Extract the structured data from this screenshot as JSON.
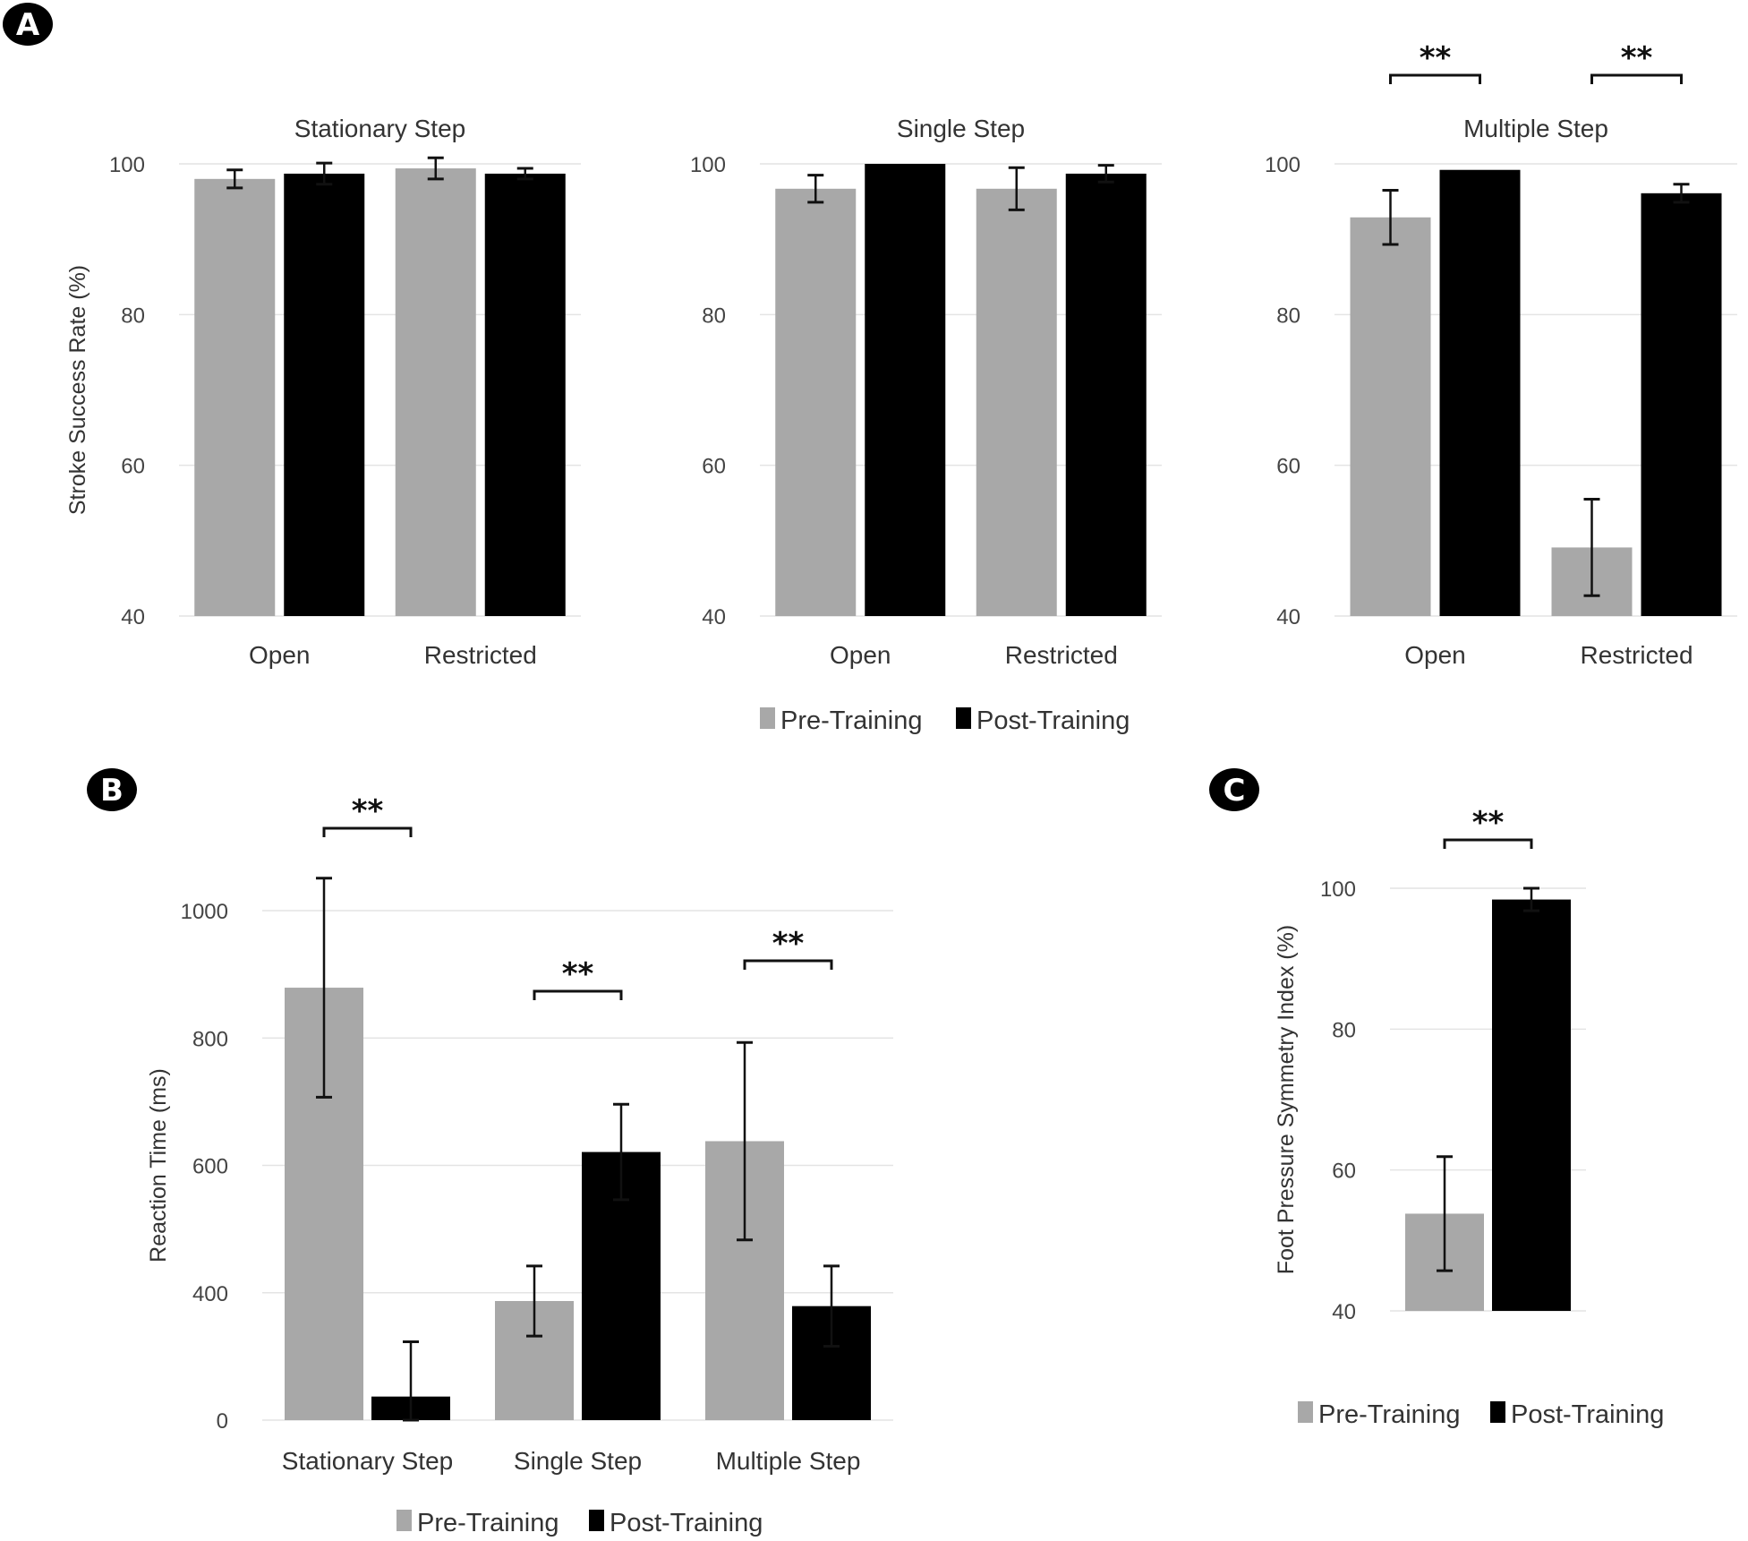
{
  "panel_labels": [
    "A",
    "B",
    "C"
  ],
  "colors": {
    "pre": "#a8a8a8",
    "post": "#000000",
    "grid": "#e4e4e4",
    "error": "#111111"
  },
  "legend": {
    "pre": "Pre-Training",
    "post": "Post-Training"
  },
  "significance_marker": "**",
  "chart_data": [
    {
      "panel": "A",
      "type": "bar",
      "title": "Stationary Step",
      "ylabel": "Stroke Success Rate (%)",
      "xlabel": "",
      "ylim": [
        40,
        100
      ],
      "yticks": [
        40,
        60,
        80,
        100
      ],
      "grid": true,
      "categories": [
        "Open",
        "Restricted"
      ],
      "series": [
        {
          "name": "Pre-Training",
          "values": [
            98.0,
            99.4
          ],
          "errors": [
            1.2,
            1.4
          ]
        },
        {
          "name": "Post-Training",
          "values": [
            98.7,
            98.7
          ],
          "errors": [
            1.4,
            0.7
          ]
        }
      ],
      "significance": []
    },
    {
      "panel": "A",
      "type": "bar",
      "title": "Single Step",
      "ylabel": "",
      "xlabel": "",
      "ylim": [
        40,
        100
      ],
      "yticks": [
        40,
        60,
        80,
        100
      ],
      "grid": true,
      "categories": [
        "Open",
        "Restricted"
      ],
      "series": [
        {
          "name": "Pre-Training",
          "values": [
            96.7,
            96.7
          ],
          "errors": [
            1.8,
            2.8
          ]
        },
        {
          "name": "Post-Training",
          "values": [
            100.0,
            98.7
          ],
          "errors": [
            0,
            1.1
          ]
        }
      ],
      "significance": []
    },
    {
      "panel": "A",
      "type": "bar",
      "title": "Multiple Step",
      "ylabel": "",
      "xlabel": "",
      "ylim": [
        40,
        100
      ],
      "yticks": [
        40,
        60,
        80,
        100
      ],
      "grid": true,
      "categories": [
        "Open",
        "Restricted"
      ],
      "series": [
        {
          "name": "Pre-Training",
          "values": [
            92.9,
            49.1
          ],
          "errors": [
            3.6,
            6.4
          ]
        },
        {
          "name": "Post-Training",
          "values": [
            99.2,
            96.1
          ],
          "errors": [
            0,
            1.2
          ]
        }
      ],
      "significance": [
        {
          "category": "Open",
          "label": "**"
        },
        {
          "category": "Restricted",
          "label": "**"
        }
      ],
      "legend_position": "bottom"
    },
    {
      "panel": "B",
      "type": "bar",
      "title": "",
      "ylabel": "Reaction Time (ms)",
      "xlabel": "",
      "ylim": [
        200,
        1000
      ],
      "yticks": [
        200,
        400,
        600,
        800,
        1000
      ],
      "ytick_labels": [
        "0",
        "400",
        "600",
        "800",
        "1000"
      ],
      "grid": true,
      "categories": [
        "Stationary Step",
        "Single Step",
        "Multiple Step"
      ],
      "series": [
        {
          "name": "Pre-Training",
          "values": [
            879,
            387,
            638
          ],
          "errors": [
            172,
            55,
            155
          ]
        },
        {
          "name": "Post-Training",
          "values": [
            237,
            621,
            379
          ],
          "errors": [
            86,
            75,
            63
          ]
        }
      ],
      "significance": [
        {
          "category": "Stationary Step",
          "label": "**"
        },
        {
          "category": "Single Step",
          "label": "**"
        },
        {
          "category": "Multiple Step",
          "label": "**"
        }
      ],
      "legend_position": "bottom"
    },
    {
      "panel": "C",
      "type": "bar",
      "title": "",
      "ylabel": "Foot Pressure Symmetry Index (%)",
      "xlabel": "",
      "ylim": [
        40,
        100
      ],
      "yticks": [
        40,
        60,
        80,
        100
      ],
      "grid": true,
      "categories": [
        ""
      ],
      "series": [
        {
          "name": "Pre-Training",
          "values": [
            53.8
          ],
          "errors": [
            8.1
          ]
        },
        {
          "name": "Post-Training",
          "values": [
            98.4
          ],
          "errors": [
            1.6
          ]
        }
      ],
      "significance": [
        {
          "category": "",
          "label": "**"
        }
      ],
      "legend_position": "bottom"
    }
  ]
}
